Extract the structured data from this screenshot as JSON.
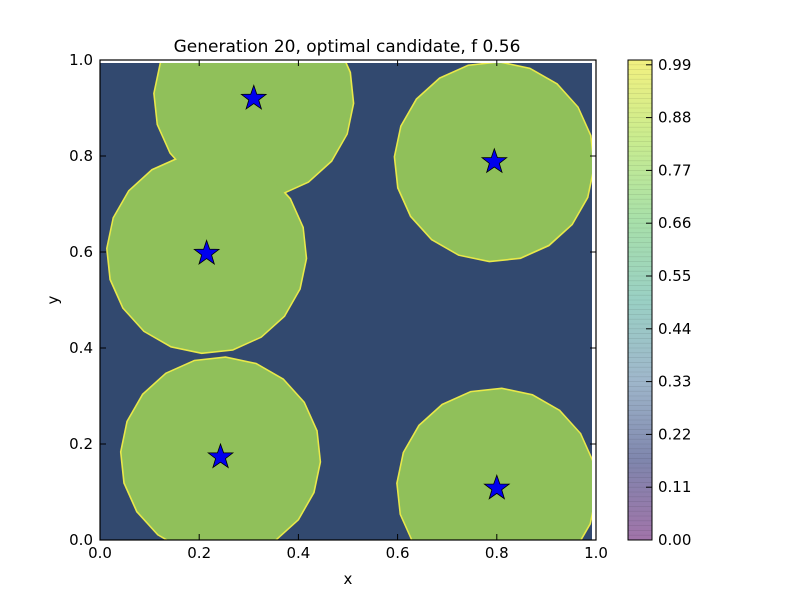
{
  "chart_data": {
    "type": "contourf",
    "title": "Generation 20, optimal candidate, f 0.56",
    "xlabel": "x",
    "ylabel": "y",
    "xlim": [
      0.0,
      1.0
    ],
    "ylim": [
      0.0,
      1.0
    ],
    "xticks": [
      "0.0",
      "0.2",
      "0.4",
      "0.6",
      "0.8",
      "1.0"
    ],
    "yticks": [
      "0.0",
      "0.2",
      "0.4",
      "0.6",
      "0.8",
      "1.0"
    ],
    "grid": false,
    "background_color": "#32496f",
    "fill_color": "#90c05a",
    "edge_color": "#e9e94a",
    "marker_color": "#0000ee",
    "regions": [
      {
        "cx": 0.31,
        "cy": 0.92,
        "r": 0.2
      },
      {
        "cx": 0.215,
        "cy": 0.597,
        "r": 0.2
      },
      {
        "cx": 0.795,
        "cy": 0.788,
        "r": 0.2
      },
      {
        "cx": 0.243,
        "cy": 0.173,
        "r": 0.2
      },
      {
        "cx": 0.8,
        "cy": 0.108,
        "r": 0.2
      }
    ],
    "stars": [
      {
        "x": 0.31,
        "y": 0.92
      },
      {
        "x": 0.215,
        "y": 0.597
      },
      {
        "x": 0.795,
        "y": 0.788
      },
      {
        "x": 0.243,
        "y": 0.173
      },
      {
        "x": 0.8,
        "y": 0.108
      }
    ],
    "colorbar": {
      "ticks": [
        "0.00",
        "0.11",
        "0.22",
        "0.33",
        "0.44",
        "0.55",
        "0.66",
        "0.77",
        "0.88",
        "0.99"
      ],
      "vmin": 0.0,
      "vmax": 1.0,
      "gradient": [
        "#a174a9",
        "#7f86ad",
        "#9fb7cb",
        "#9ad0c4",
        "#a8e0a9",
        "#c9ec8f",
        "#f2f080"
      ]
    }
  }
}
